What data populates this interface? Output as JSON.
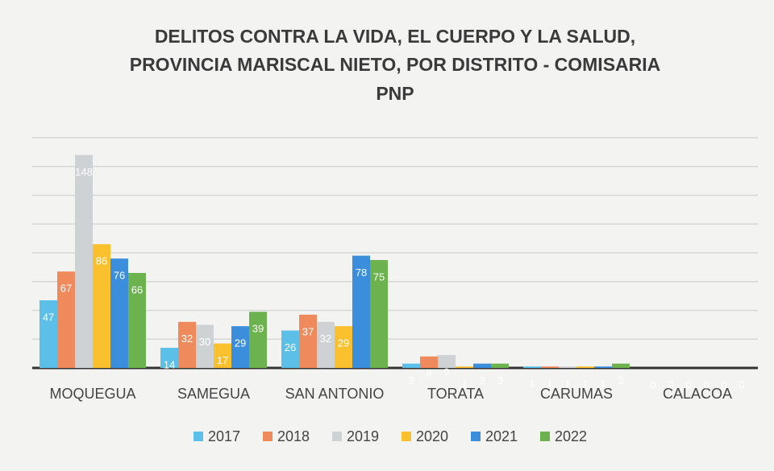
{
  "chart_data": {
    "type": "bar",
    "title": [
      "DELITOS CONTRA LA VIDA, EL CUERPO Y LA SALUD,",
      "PROVINCIA MARISCAL NIETO, POR DISTRITO - COMISARIA",
      "PNP"
    ],
    "categories": [
      "MOQUEGUA",
      "SAMEGUA",
      "SAN ANTONIO",
      "TORATA",
      "CARUMAS",
      "CALACOA"
    ],
    "series": [
      {
        "name": "2017",
        "color": "#5bbfe8",
        "values": [
          47,
          14,
          26,
          3,
          1,
          0
        ]
      },
      {
        "name": "2018",
        "color": "#ef8a5c",
        "values": [
          67,
          32,
          37,
          8,
          1,
          0
        ]
      },
      {
        "name": "2019",
        "color": "#cfd2d5",
        "values": [
          148,
          30,
          32,
          9,
          1,
          0
        ]
      },
      {
        "name": "2020",
        "color": "#fbc02d",
        "values": [
          86,
          17,
          29,
          1,
          1,
          0
        ]
      },
      {
        "name": "2021",
        "color": "#3a8edb",
        "values": [
          76,
          29,
          78,
          3,
          1,
          0
        ]
      },
      {
        "name": "2022",
        "color": "#6cb24e",
        "values": [
          66,
          39,
          75,
          3,
          3,
          0
        ]
      }
    ],
    "ylim": [
      0,
      160
    ],
    "yticks": [
      0,
      20,
      40,
      60,
      80,
      100,
      120,
      140,
      160
    ],
    "grid": true,
    "legend": "bottom"
  }
}
